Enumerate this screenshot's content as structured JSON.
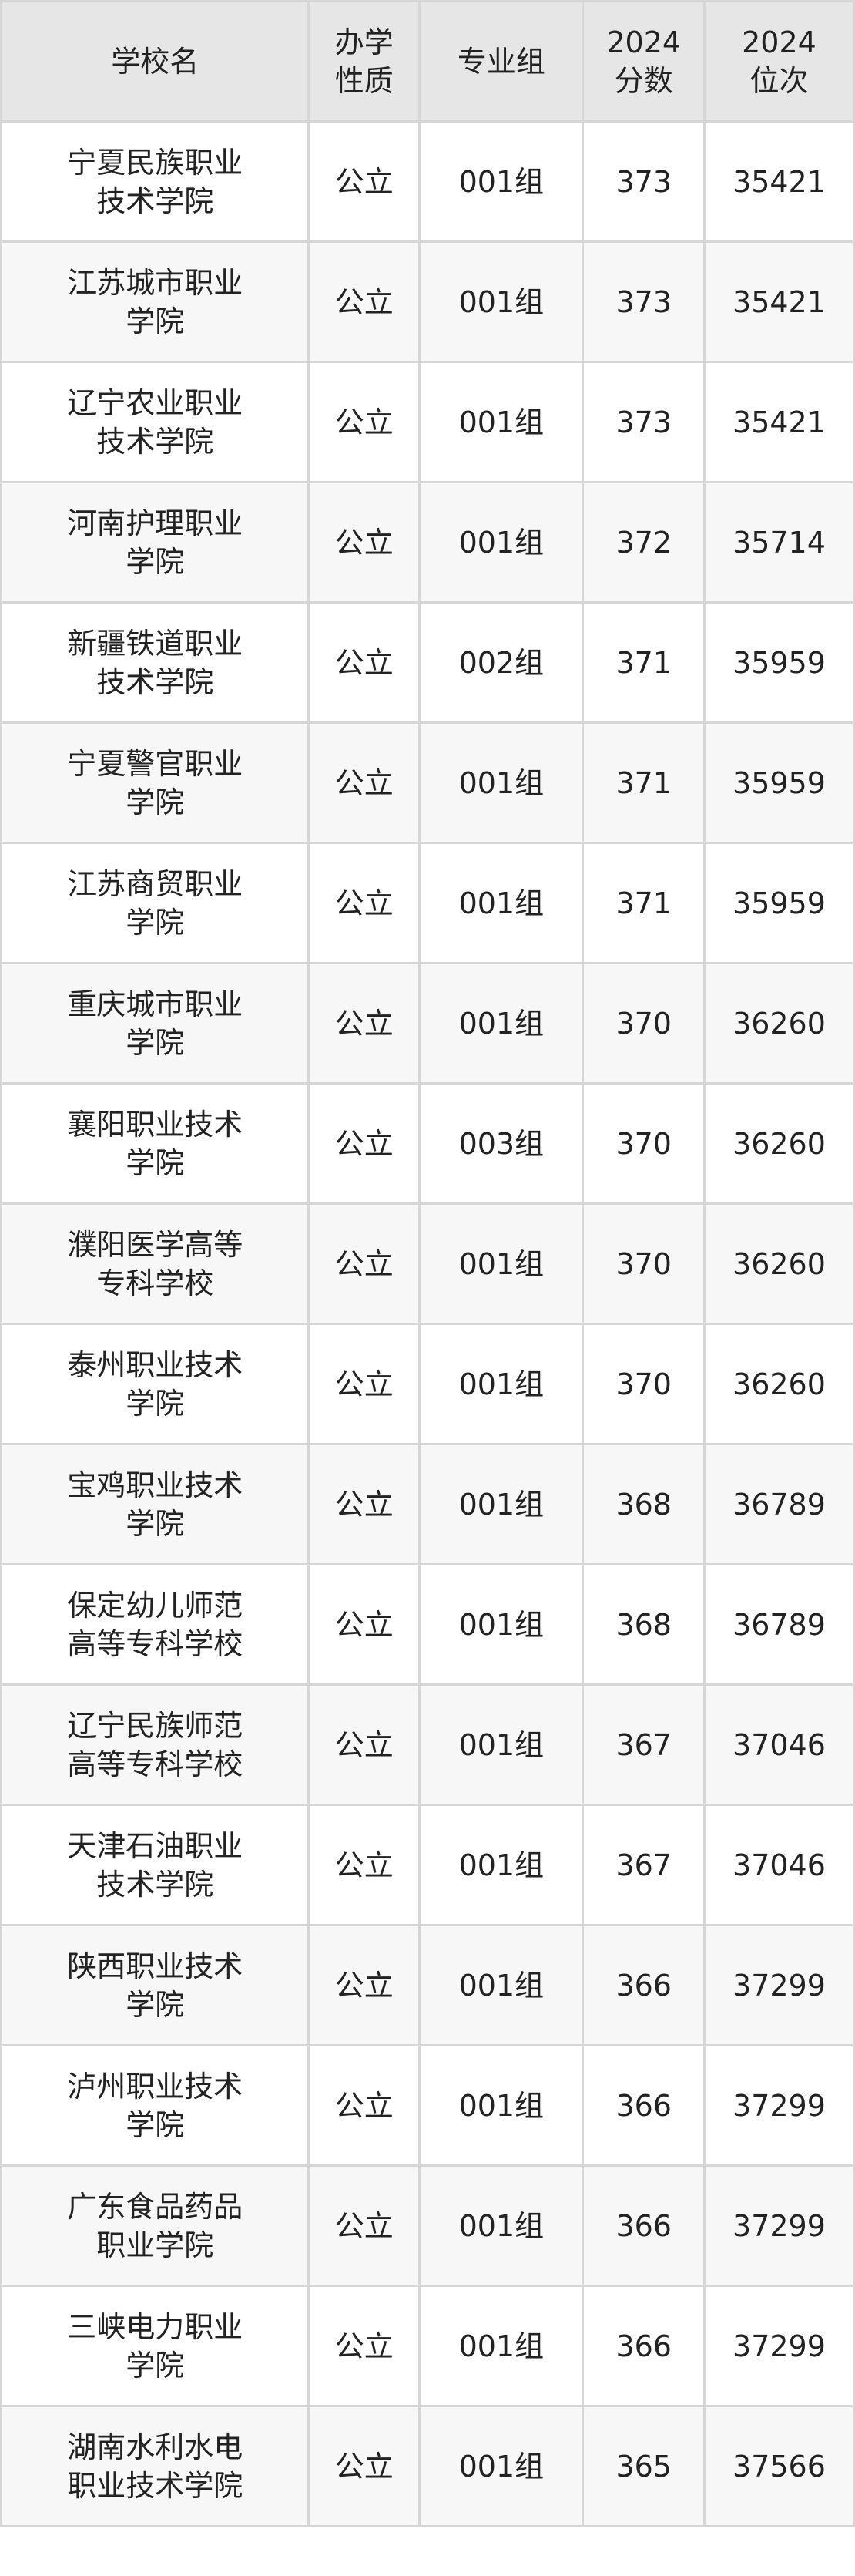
{
  "headers": [
    "学校名",
    "办学性质",
    "专业组",
    "2024分数",
    "2024位次"
  ],
  "header_lines": [
    [
      "学校名"
    ],
    [
      "办学",
      "性质"
    ],
    [
      "专业组"
    ],
    [
      "2024",
      "分数"
    ],
    [
      "2024",
      "位次"
    ]
  ],
  "rows": [
    {
      "name": [
        "宁夏民族职业",
        "技术学院"
      ],
      "type": "公立",
      "group": "001组",
      "score": "373",
      "rank": "35421"
    },
    {
      "name": [
        "江苏城市职业",
        "学院"
      ],
      "type": "公立",
      "group": "001组",
      "score": "373",
      "rank": "35421"
    },
    {
      "name": [
        "辽宁农业职业",
        "技术学院"
      ],
      "type": "公立",
      "group": "001组",
      "score": "373",
      "rank": "35421"
    },
    {
      "name": [
        "河南护理职业",
        "学院"
      ],
      "type": "公立",
      "group": "001组",
      "score": "372",
      "rank": "35714"
    },
    {
      "name": [
        "新疆铁道职业",
        "技术学院"
      ],
      "type": "公立",
      "group": "002组",
      "score": "371",
      "rank": "35959"
    },
    {
      "name": [
        "宁夏警官职业",
        "学院"
      ],
      "type": "公立",
      "group": "001组",
      "score": "371",
      "rank": "35959"
    },
    {
      "name": [
        "江苏商贸职业",
        "学院"
      ],
      "type": "公立",
      "group": "001组",
      "score": "371",
      "rank": "35959"
    },
    {
      "name": [
        "重庆城市职业",
        "学院"
      ],
      "type": "公立",
      "group": "001组",
      "score": "370",
      "rank": "36260"
    },
    {
      "name": [
        "襄阳职业技术",
        "学院"
      ],
      "type": "公立",
      "group": "003组",
      "score": "370",
      "rank": "36260"
    },
    {
      "name": [
        "濮阳医学高等",
        "专科学校"
      ],
      "type": "公立",
      "group": "001组",
      "score": "370",
      "rank": "36260"
    },
    {
      "name": [
        "泰州职业技术",
        "学院"
      ],
      "type": "公立",
      "group": "001组",
      "score": "370",
      "rank": "36260"
    },
    {
      "name": [
        "宝鸡职业技术",
        "学院"
      ],
      "type": "公立",
      "group": "001组",
      "score": "368",
      "rank": "36789"
    },
    {
      "name": [
        "保定幼儿师范",
        "高等专科学校"
      ],
      "type": "公立",
      "group": "001组",
      "score": "368",
      "rank": "36789"
    },
    {
      "name": [
        "辽宁民族师范",
        "高等专科学校"
      ],
      "type": "公立",
      "group": "001组",
      "score": "367",
      "rank": "37046"
    },
    {
      "name": [
        "天津石油职业",
        "技术学院"
      ],
      "type": "公立",
      "group": "001组",
      "score": "367",
      "rank": "37046"
    },
    {
      "name": [
        "陕西职业技术",
        "学院"
      ],
      "type": "公立",
      "group": "001组",
      "score": "366",
      "rank": "37299"
    },
    {
      "name": [
        "泸州职业技术",
        "学院"
      ],
      "type": "公立",
      "group": "001组",
      "score": "366",
      "rank": "37299"
    },
    {
      "name": [
        "广东食品药品",
        "职业学院"
      ],
      "type": "公立",
      "group": "001组",
      "score": "366",
      "rank": "37299"
    },
    {
      "name": [
        "三峡电力职业",
        "学院"
      ],
      "type": "公立",
      "group": "001组",
      "score": "366",
      "rank": "37299"
    },
    {
      "name": [
        "湖南水利水电",
        "职业技术学院"
      ],
      "type": "公立",
      "group": "001组",
      "score": "365",
      "rank": "37566"
    }
  ],
  "colors": {
    "header_bg": "#e6e6e6",
    "alt_row_bg": "#f7f7f7",
    "border": "#d6d6d6"
  }
}
